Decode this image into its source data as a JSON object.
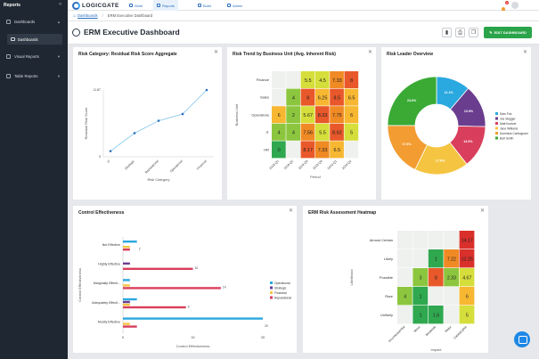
{
  "sidebar": {
    "title": "Reports",
    "items": [
      {
        "label": "Dashboards"
      },
      {
        "label": "Dashboards"
      },
      {
        "label": "Visual Reports"
      },
      {
        "label": "Table Reports"
      }
    ]
  },
  "topbar": {
    "logo": "LOGICGATE",
    "nav": [
      {
        "label": "Work"
      },
      {
        "label": "Reports"
      },
      {
        "label": "Build"
      },
      {
        "label": "Admin"
      }
    ],
    "alert_count": "2"
  },
  "breadcrumb": {
    "link": "Dashboards",
    "current": "ERM Executive Dashboard"
  },
  "header": {
    "title": "ERM Executive Dashboard",
    "edit_label": "EDIT DASHBOARD"
  },
  "colors": {
    "accent": "#2c6fbf",
    "sidebar": "#1f2732",
    "edit": "#2aa44a"
  },
  "cards": [
    {
      "title": "Risk Category: Residual Risk Score Aggregate"
    },
    {
      "title": "Risk Trend by Business Unit (Avg. Inherent Risk)"
    },
    {
      "title": "Risk Leader Overview"
    },
    {
      "title": "Control Effectiveness"
    },
    {
      "title": "ERM Risk Assessment Heatmap"
    }
  ],
  "chart_data": [
    {
      "type": "line",
      "title": "Risk Category: Residual Risk Score Aggregate",
      "xlabel": "Risk Category",
      "ylabel": "Residual Risk Score",
      "categories": [
        "IT",
        "Strategic",
        "Reputational",
        "Operational",
        "Financial"
      ],
      "values": [
        1,
        4.2,
        6.4,
        7.6,
        11.87
      ],
      "y_labels": [
        "11.87",
        "0"
      ]
    },
    {
      "type": "heatmap",
      "title": "Risk Trend by Business Unit (Avg. Inherent Risk)",
      "xlabel": "Period",
      "ylabel": "Business Unit",
      "rows": [
        "Finance",
        "Sales",
        "Operations",
        "IT",
        "HR"
      ],
      "cols": [
        "2018 Q1",
        "2018 Q2",
        "2018 Q3",
        "2018 Q4",
        "2019 Q1",
        "2019 Q2"
      ],
      "cells": [
        [
          "",
          "",
          "5.5",
          "4.5",
          "7.33",
          "8"
        ],
        [
          "",
          "4",
          "8",
          "6.25",
          "8.5",
          "6.5"
        ],
        [
          "6",
          "2",
          "5.67",
          "8.33",
          "7.75",
          "6"
        ],
        [
          "4",
          "4",
          "7.56",
          "5.5",
          "8.62",
          "5"
        ],
        [
          "0",
          "",
          "8.17",
          "7.33",
          "6.5",
          ""
        ]
      ]
    },
    {
      "type": "pie",
      "title": "Risk Leader Overview",
      "labels": [
        "Sam Frol",
        "Joe Slagger",
        "Matt Kuntzel",
        "Jane Williams",
        "Dominick Carbognani",
        "Bart Smith"
      ],
      "values": [
        11.1,
        13.9,
        13.9,
        17.6,
        17.6,
        24.6
      ],
      "colors": [
        "#2aa8e0",
        "#6a3d8f",
        "#d93f5c",
        "#f5c542",
        "#f39c32",
        "#3aaa35"
      ]
    },
    {
      "type": "bar",
      "title": "Control Effectiveness",
      "xlabel": "Control Effectiveness",
      "ylabel": "Control Effectiveness",
      "categories": [
        "Not Effective",
        "Highly Effective",
        "Marginally Effecti...",
        "Adequately Effecti...",
        "Mostly Effective"
      ],
      "series": [
        {
          "name": "Operational",
          "values": [
            2,
            0,
            1,
            2,
            20
          ]
        },
        {
          "name": "Strategic",
          "values": [
            0,
            1,
            0,
            1,
            0
          ]
        },
        {
          "name": "Financial",
          "values": [
            1,
            0,
            1,
            1,
            1
          ]
        },
        {
          "name": "Reputational",
          "values": [
            1,
            10,
            14,
            9,
            2
          ]
        }
      ],
      "data_labels": [
        "2",
        "10",
        "14",
        "9",
        "20"
      ],
      "x_ticks": [
        "0",
        "10",
        "20"
      ],
      "xlim": [
        0,
        20
      ]
    },
    {
      "type": "heatmap",
      "title": "ERM Risk Assessment Heatmap",
      "xlabel": "Impact",
      "ylabel": "Likelihood",
      "rows": [
        "Almost Certain",
        "Likely",
        "Possible",
        "Rare",
        "Unlikely"
      ],
      "cols": [
        "Inconsequential",
        "Minor",
        "Moderate",
        "Major",
        "Catastrophic"
      ],
      "cells": [
        [
          "",
          "",
          "",
          "",
          "14.17"
        ],
        [
          "",
          "",
          "1",
          "7.22",
          "12.25"
        ],
        [
          "",
          "3",
          "8",
          "2.33",
          "4.67"
        ],
        [
          "4",
          "1",
          "",
          "",
          "6"
        ],
        [
          "",
          "1",
          "1.6",
          "",
          "5"
        ]
      ]
    }
  ]
}
